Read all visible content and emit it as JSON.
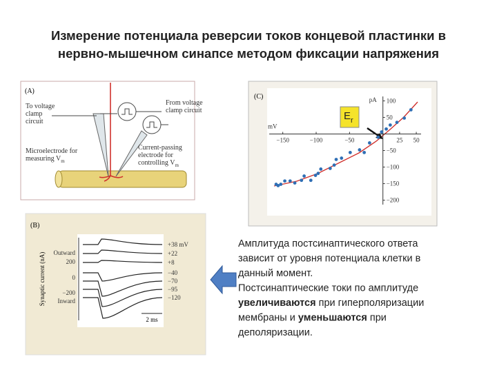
{
  "title": [
    "Измерение потенциала реверсии токов концевой пластинки в",
    "нервно-мышечном синапсе методом фиксации напряжения"
  ],
  "panel_a": {
    "label": "(A)",
    "notes": [
      {
        "lines": [
          {
            "text": "To voltage"
          },
          {
            "text": "clamp"
          },
          {
            "text": "circuit"
          }
        ]
      },
      {
        "lines": [
          {
            "text": "From voltage"
          },
          {
            "text": "clamp circuit"
          }
        ]
      },
      {
        "lines": [
          {
            "text": "Microelectrode for"
          },
          {
            "text": "measuring V",
            "sub": "m"
          }
        ]
      },
      {
        "lines": [
          {
            "text": "Current-passing"
          },
          {
            "text": "electrode for"
          },
          {
            "text": "controlling V",
            "sub": "m"
          }
        ]
      }
    ]
  },
  "panel_c": {
    "label": "(C)",
    "x_label": "mV",
    "y_label": "pA",
    "xlim": [
      -160,
      52
    ],
    "ylim": [
      -205,
      105
    ],
    "xticks": [
      {
        "value": -150,
        "label": "−150"
      },
      {
        "value": -100,
        "label": "−100"
      },
      {
        "value": -50,
        "label": "−50"
      },
      25,
      50
    ],
    "yticks": [
      100,
      50,
      {
        "value": -50,
        "label": "−50"
      },
      {
        "value": -100,
        "label": "−100"
      },
      {
        "value": -150,
        "label": "−150"
      },
      {
        "value": -200,
        "label": "−200"
      }
    ],
    "point_color": "#2f6fb5",
    "fit_color": "#d0312d",
    "points": {
      "x": [
        -160,
        -157,
        -153,
        -147,
        -139,
        -132,
        -122,
        -118,
        -108,
        -101,
        -97,
        -93,
        -79,
        -73,
        -70,
        -62,
        -49,
        -35,
        -28,
        -20,
        -7,
        -2,
        5,
        11,
        21,
        32,
        42
      ],
      "y": [
        -152,
        -156,
        -152,
        -142,
        -142,
        -148,
        -140,
        -127,
        -140,
        -125,
        -119,
        -106,
        -104,
        -94,
        -77,
        -73,
        -56,
        -48,
        -56,
        -27,
        -10,
        6,
        15,
        27,
        35,
        48,
        73
      ]
    },
    "marker": {
      "base": "E",
      "sub": "r"
    }
  },
  "panel_b": {
    "label": "(B)",
    "y_label": "Synaptic current (nA)",
    "axis_texts": [
      "Outward",
      "200",
      "0",
      "−200",
      "Inward"
    ],
    "trace_labels": [
      "+38 mV",
      "+22",
      "+8",
      "−40",
      "−70",
      "−95",
      "−120"
    ],
    "scale": "2 ms"
  },
  "text_block": [
    [
      {
        "t": "Амплитуда постсинаптического ответа",
        "bold": false
      }
    ],
    [
      {
        "t": "зависит от уровня потенциала клетки в",
        "bold": false
      }
    ],
    [
      {
        "t": "данный момент.",
        "bold": false
      }
    ],
    [
      {
        "t": "Постсинаптические токи по амплитуде",
        "bold": false
      }
    ],
    [
      {
        "t": "увеличиваются",
        "bold": true
      },
      {
        "t": " при гиперполяризации",
        "bold": false
      }
    ],
    [
      {
        "t": "мембраны и ",
        "bold": false
      },
      {
        "t": "уменьшаются",
        "bold": true
      },
      {
        "t": " при",
        "bold": false
      }
    ],
    [
      {
        "t": "деполяризации.",
        "bold": false
      }
    ]
  ]
}
